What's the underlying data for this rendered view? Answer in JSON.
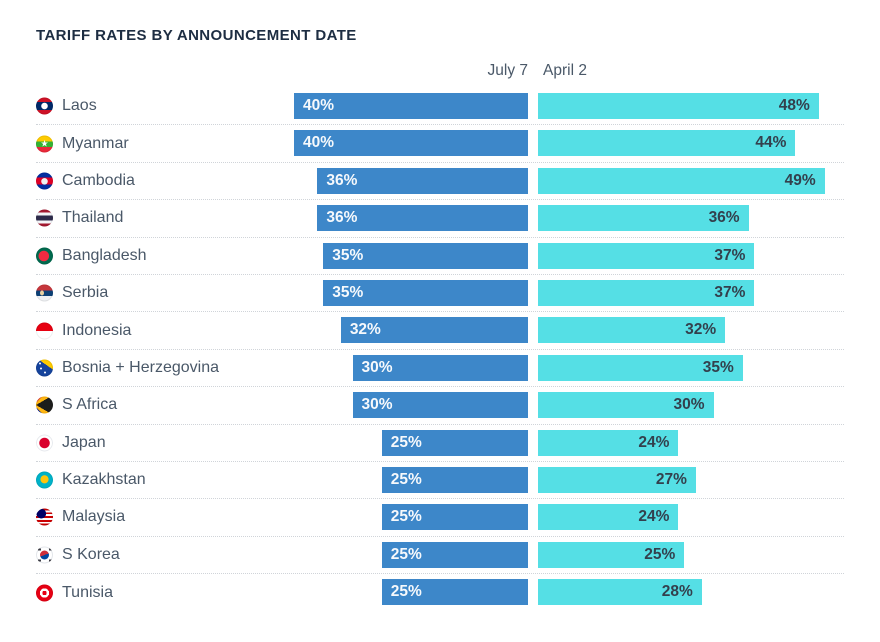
{
  "title": "TARIFF RATES BY ANNOUNCEMENT DATE",
  "colors": {
    "july7_bar": "#3d87c9",
    "april2_bar": "#55dfe5",
    "title_text": "#1d2d42",
    "country_text": "#4a5868",
    "bar_label_light": "#f6f9fc",
    "bar_label_dark": "#33404d",
    "separator": "#d0d4d9",
    "background": "#ffffff"
  },
  "chart_data": {
    "type": "bar",
    "orientation": "horizontal-paired",
    "title": "TARIFF RATES BY ANNOUNCEMENT DATE",
    "value_suffix": "%",
    "xlim": [
      0,
      50
    ],
    "grid": false,
    "legend_position": "top-center-column-headers",
    "categories": [
      "Laos",
      "Myanmar",
      "Cambodia",
      "Thailand",
      "Bangladesh",
      "Serbia",
      "Indonesia",
      "Bosnia + Herzegovina",
      "S Africa",
      "Japan",
      "Kazakhstan",
      "Malaysia",
      "S Korea",
      "Tunisia"
    ],
    "flag_icons": [
      "laos",
      "myanmar",
      "cambodia",
      "thailand",
      "bangladesh",
      "serbia",
      "indonesia",
      "bosnia",
      "safrica",
      "japan",
      "kazakhstan",
      "malaysia",
      "skorea",
      "tunisia"
    ],
    "series": [
      {
        "name": "July 7",
        "values": [
          40,
          40,
          36,
          36,
          35,
          35,
          32,
          30,
          30,
          25,
          25,
          25,
          25,
          25
        ]
      },
      {
        "name": "April 2",
        "values": [
          48,
          44,
          49,
          36,
          37,
          37,
          32,
          35,
          30,
          24,
          27,
          24,
          25,
          28
        ]
      }
    ]
  }
}
